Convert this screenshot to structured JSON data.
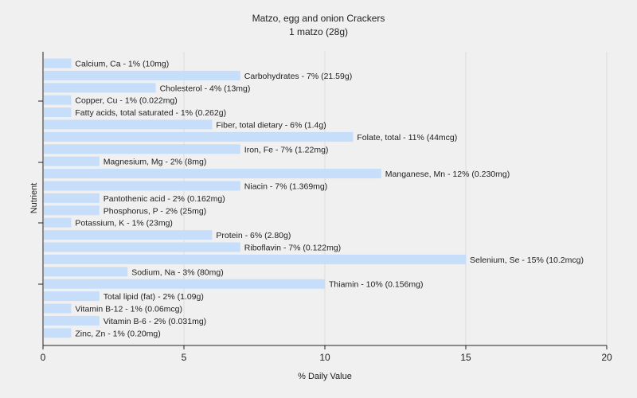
{
  "chart_data": {
    "type": "bar",
    "orientation": "horizontal",
    "title": "Matzo, egg and onion Crackers",
    "subtitle": "1 matzo (28g)",
    "xlabel": "% Daily Value",
    "ylabel": "Nutrient",
    "xlim": [
      0,
      20
    ],
    "xticks": [
      "0",
      "5",
      "10",
      "15",
      "20"
    ],
    "grid": true,
    "bar_color": "#c6defa",
    "categories": [
      "Calcium, Ca",
      "Carbohydrates",
      "Cholesterol",
      "Copper, Cu",
      "Fatty acids, total saturated",
      "Fiber, total dietary",
      "Folate, total",
      "Iron, Fe",
      "Magnesium, Mg",
      "Manganese, Mn",
      "Niacin",
      "Pantothenic acid",
      "Phosphorus, P",
      "Potassium, K",
      "Protein",
      "Riboflavin",
      "Selenium, Se",
      "Sodium, Na",
      "Thiamin",
      "Total lipid (fat)",
      "Vitamin B-12",
      "Vitamin B-6",
      "Zinc, Zn"
    ],
    "values": [
      1,
      7,
      4,
      1,
      1,
      6,
      11,
      7,
      2,
      12,
      7,
      2,
      2,
      1,
      6,
      7,
      15,
      3,
      10,
      2,
      1,
      2,
      1
    ],
    "labels": [
      "Calcium, Ca - 1% (10mg)",
      "Carbohydrates - 7% (21.59g)",
      "Cholesterol - 4% (13mg)",
      "Copper, Cu - 1% (0.022mg)",
      "Fatty acids, total saturated - 1% (0.262g)",
      "Fiber, total dietary - 6% (1.4g)",
      "Folate, total - 11% (44mcg)",
      "Iron, Fe - 7% (1.22mg)",
      "Magnesium, Mg - 2% (8mg)",
      "Manganese, Mn - 12% (0.230mg)",
      "Niacin - 7% (1.369mg)",
      "Pantothenic acid - 2% (0.162mg)",
      "Phosphorus, P - 2% (25mg)",
      "Potassium, K - 1% (23mg)",
      "Protein - 6% (2.80g)",
      "Riboflavin - 7% (0.122mg)",
      "Selenium, Se - 15% (10.2mcg)",
      "Sodium, Na - 3% (80mg)",
      "Thiamin - 10% (0.156mg)",
      "Total lipid (fat) - 2% (1.09g)",
      "Vitamin B-12 - 1% (0.06mcg)",
      "Vitamin B-6 - 2% (0.031mg)",
      "Zinc, Zn - 1% (0.20mg)"
    ]
  }
}
